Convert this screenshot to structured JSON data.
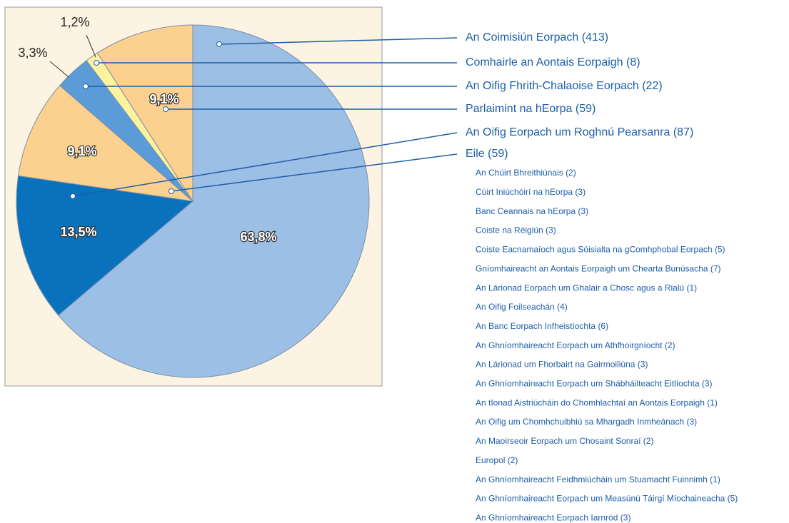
{
  "chart_data": {
    "type": "pie",
    "categories": [
      "An Coimisiún Eorpach (413)",
      "An Oifig Eorpach um Roghnú Pearsanra (87)",
      "Eile (59)",
      "An Oifig Fhrith-Chalaoise Eorpach (22)",
      "Comhairle an Aontais Eorpaigh (8)",
      "Parlaimint na hEorpa (59)"
    ],
    "values": [
      63.8,
      13.5,
      9.1,
      3.3,
      1.2,
      9.1
    ],
    "value_labels": [
      "63,8%",
      "13,5%",
      "9,1%",
      "3,3%",
      "1,2%",
      "9,1%"
    ],
    "colors": [
      "#9bbfe5",
      "#0a72bd",
      "#fcd08e",
      "#5b9bd7",
      "#fff29e",
      "#fcd08e"
    ],
    "eile_breakdown": [
      "An Chúirt Bhreithiúnais (2)",
      "Cúirt Iniúchóirí na hEorpa (3)",
      "Banc Ceannais na hEorpa (3)",
      "Coiste na Réigiún (3)",
      "Coiste Eacnamaíoch agus Sóisialta na gComhphobal Eorpach (5)",
      "Gníomhaireacht an Aontais Eorpaigh um Chearta Bunúsacha (7)",
      "An Lárionad Eorpach um Ghalair a Chosc agus a Rialú (1)",
      "An Oifig Foilseachán (4)",
      "An Banc Eorpach Infheistíochta (6)",
      "An Ghníomhaireacht Eorpach um Athfhoirgníocht (2)",
      "An Lárionad um Fhorbairt na Gairmoiliúna (3)",
      "An Ghníomhaireacht Eorpach um Shábháilteacht Eitlíochta (3)",
      "An tIonad Aistriúcháin do Chomhlachtaí an Aontais Eorpaigh (1)",
      "An Oifig um Chomhchuibhiú sa Mhargadh Inmheánach (3)",
      "An Maoirseoir Eorpach um Chosaint Sonraí (2)",
      "Europol (2)",
      "An Ghníomhaireacht Feidhmiúcháin um Stuamacht Fuinnimh (1)",
      "An Ghníomhaireacht Eorpach um Measúnú Táirgí Míochaineacha (5)",
      "An Ghníomhaireacht Eorpach Iarnród (3)"
    ]
  }
}
